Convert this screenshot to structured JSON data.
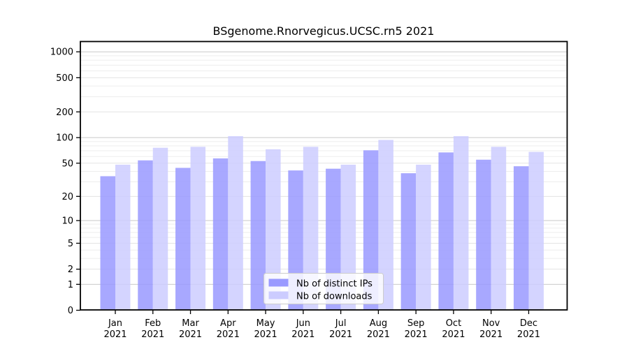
{
  "chart_data": {
    "type": "bar",
    "title": "BSgenome.Rnorvegicus.UCSC.rn5 2021",
    "categories": [
      "Jan",
      "Feb",
      "Mar",
      "Apr",
      "May",
      "Jun",
      "Jul",
      "Aug",
      "Sep",
      "Oct",
      "Nov",
      "Dec"
    ],
    "year": "2021",
    "series": [
      {
        "name": "Nb of distinct IPs",
        "color": "#9999ff",
        "values": [
          35,
          54,
          44,
          57,
          53,
          41,
          43,
          71,
          38,
          67,
          55,
          46
        ]
      },
      {
        "name": "Nb of downloads",
        "color": "#ccccff",
        "values": [
          48,
          76,
          78,
          104,
          73,
          78,
          48,
          94,
          48,
          104,
          78,
          68
        ]
      }
    ],
    "xlabel": "",
    "ylabel": "",
    "yscale": "log1p",
    "yticks": [
      0,
      1,
      2,
      5,
      10,
      20,
      50,
      100,
      200,
      500,
      1000
    ],
    "ylim": [
      0,
      1300
    ],
    "grid": true,
    "legend_position": "bottom-center",
    "colors": {
      "grid_major": "#c9c9c9",
      "grid_labeled": "#e3e3e3",
      "grid_minor": "#ededed",
      "frame": "#000000",
      "legend_border": "#cccccc"
    }
  }
}
